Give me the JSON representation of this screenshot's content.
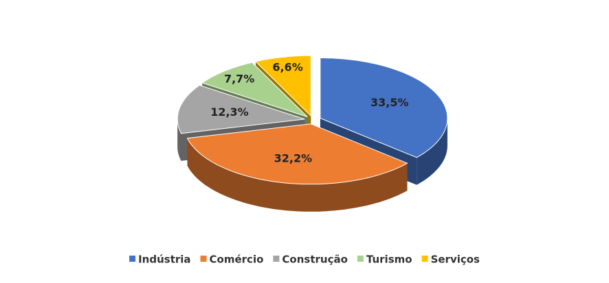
{
  "chart_data": {
    "type": "pie",
    "categories": [
      "Indústria",
      "Comércio",
      "Construção",
      "Turismo",
      "Serviços"
    ],
    "values": [
      33.5,
      32.2,
      12.3,
      7.7,
      6.6
    ],
    "value_labels": [
      "33,5%",
      "32,2%",
      "12,3%",
      "7,7%",
      "6,6%"
    ],
    "colors": [
      "#4472c4",
      "#ed7d31",
      "#a5a5a5",
      "#a9d18e",
      "#ffc000"
    ],
    "legend": "bottom"
  }
}
